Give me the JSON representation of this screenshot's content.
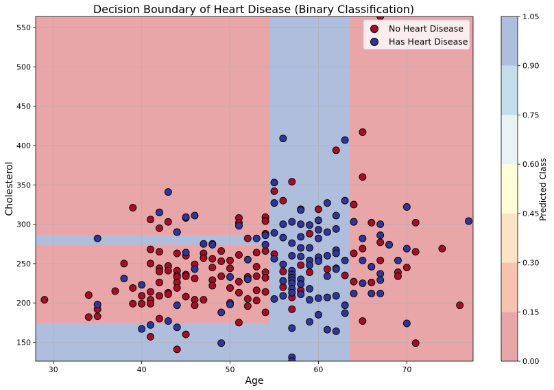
{
  "chart_data": {
    "type": "scatter",
    "title": "Decision Boundary of Heart Disease (Binary Classification)",
    "xlabel": "Age",
    "ylabel": "Cholesterol",
    "xlim": [
      28,
      77.5
    ],
    "ylim": [
      126,
      564
    ],
    "xticks": [
      30,
      40,
      50,
      60,
      70
    ],
    "yticks": [
      150,
      200,
      250,
      300,
      350,
      400,
      450,
      500,
      550
    ],
    "grid": true,
    "legend_position": "top-right",
    "colors": {
      "class0_point": "#a50f26",
      "class1_point": "#313694",
      "class0_region": "#e8a6a9",
      "class1_region": "#afbedd",
      "point_edge": "#000000",
      "grid": "#b0b0b0"
    },
    "regions": [
      {
        "class": 1,
        "x": [
          54.5,
          63.5
        ],
        "y": [
          126,
          564
        ]
      },
      {
        "class": 1,
        "x": [
          28,
          54.5
        ],
        "y": [
          126,
          174
        ]
      },
      {
        "class": 1,
        "x": [
          28,
          54.5
        ],
        "y": [
          274,
          286
        ]
      }
    ],
    "series": [
      {
        "name": "No Heart Disease",
        "class": 0,
        "points": [
          [
            29,
            204
          ],
          [
            34,
            210
          ],
          [
            34,
            182
          ],
          [
            35,
            183
          ],
          [
            35,
            192
          ],
          [
            37,
            215
          ],
          [
            38,
            250
          ],
          [
            39,
            321
          ],
          [
            39,
            219
          ],
          [
            39,
            199
          ],
          [
            40,
            199
          ],
          [
            40,
            209
          ],
          [
            40,
            199
          ],
          [
            41,
            306
          ],
          [
            41,
            268
          ],
          [
            41,
            250
          ],
          [
            41,
            214
          ],
          [
            41,
            204
          ],
          [
            41,
            199
          ],
          [
            41,
            157
          ],
          [
            42,
            315
          ],
          [
            42,
            295
          ],
          [
            42,
            265
          ],
          [
            42,
            244
          ],
          [
            42,
            240
          ],
          [
            42,
            226
          ],
          [
            42,
            209
          ],
          [
            42,
            180
          ],
          [
            43,
            303
          ],
          [
            43,
            247
          ],
          [
            43,
            241
          ],
          [
            43,
            213
          ],
          [
            43,
            211
          ],
          [
            44,
            290
          ],
          [
            44,
            263
          ],
          [
            44,
            241
          ],
          [
            44,
            235
          ],
          [
            44,
            233
          ],
          [
            44,
            226
          ],
          [
            44,
            219
          ],
          [
            44,
            141
          ],
          [
            45,
            308
          ],
          [
            45,
            260
          ],
          [
            45,
            236
          ],
          [
            45,
            234
          ],
          [
            45,
            208
          ],
          [
            45,
            160
          ],
          [
            46,
            249
          ],
          [
            46,
            231
          ],
          [
            46,
            204
          ],
          [
            46,
            197
          ],
          [
            47,
            263
          ],
          [
            47,
            257
          ],
          [
            47,
            204
          ],
          [
            48,
            275
          ],
          [
            48,
            256
          ],
          [
            48,
            245
          ],
          [
            48,
            229
          ],
          [
            48,
            222
          ],
          [
            49,
            266
          ],
          [
            49,
            253
          ],
          [
            49,
            234
          ],
          [
            50,
            254
          ],
          [
            50,
            244
          ],
          [
            50,
            219
          ],
          [
            50,
            200
          ],
          [
            51,
            308
          ],
          [
            51,
            302
          ],
          [
            51,
            261
          ],
          [
            51,
            227
          ],
          [
            51,
            213
          ],
          [
            51,
            175
          ],
          [
            52,
            282
          ],
          [
            52,
            233
          ],
          [
            52,
            205
          ],
          [
            52,
            196
          ],
          [
            53,
            264
          ],
          [
            53,
            246
          ],
          [
            53,
            234
          ],
          [
            53,
            216
          ],
          [
            53,
            203
          ],
          [
            54,
            309
          ],
          [
            54,
            304
          ],
          [
            54,
            288
          ],
          [
            54,
            266
          ],
          [
            54,
            239
          ],
          [
            54,
            232
          ],
          [
            54,
            214
          ],
          [
            54,
            188
          ],
          [
            55,
            342
          ],
          [
            55,
            262
          ],
          [
            56,
            330
          ],
          [
            56,
            240
          ],
          [
            56,
            220
          ],
          [
            57,
            354
          ],
          [
            57,
            236
          ],
          [
            57,
            207
          ],
          [
            57,
            192
          ],
          [
            58,
            319
          ],
          [
            58,
            248
          ],
          [
            58,
            216
          ],
          [
            59,
            288
          ],
          [
            59,
            239
          ],
          [
            60,
            319
          ],
          [
            60,
            254
          ],
          [
            61,
            243
          ],
          [
            61,
            207
          ],
          [
            62,
            394
          ],
          [
            62,
            244
          ],
          [
            63,
            235
          ],
          [
            64,
            325
          ],
          [
            64,
            303
          ],
          [
            64,
            263
          ],
          [
            64,
            227
          ],
          [
            65,
            417
          ],
          [
            65,
            360
          ],
          [
            65,
            269
          ],
          [
            65,
            177
          ],
          [
            66,
            302
          ],
          [
            66,
            226
          ],
          [
            67,
            564
          ],
          [
            67,
            277
          ],
          [
            67,
            254
          ],
          [
            68,
            274
          ],
          [
            69,
            239
          ],
          [
            69,
            234
          ],
          [
            70,
            245
          ],
          [
            71,
            302
          ],
          [
            71,
            265
          ],
          [
            71,
            149
          ],
          [
            74,
            269
          ],
          [
            76,
            197
          ]
        ]
      },
      {
        "name": "Has Heart Disease",
        "class": 1,
        "points": [
          [
            35,
            282
          ],
          [
            35,
            198
          ],
          [
            38,
            231
          ],
          [
            40,
            223
          ],
          [
            40,
            167
          ],
          [
            41,
            172
          ],
          [
            42,
            315
          ],
          [
            43,
            341
          ],
          [
            43,
            177
          ],
          [
            44,
            290
          ],
          [
            44,
            197
          ],
          [
            44,
            169
          ],
          [
            45,
            309
          ],
          [
            45,
            264
          ],
          [
            46,
            311
          ],
          [
            46,
            243
          ],
          [
            47,
            275
          ],
          [
            48,
            274
          ],
          [
            49,
            188
          ],
          [
            49,
            149
          ],
          [
            50,
            233
          ],
          [
            50,
            198
          ],
          [
            51,
            298
          ],
          [
            52,
            255
          ],
          [
            52,
            230
          ],
          [
            53,
            282
          ],
          [
            54,
            286
          ],
          [
            54,
            274
          ],
          [
            55,
            353
          ],
          [
            55,
            327
          ],
          [
            55,
            289
          ],
          [
            55,
            256
          ],
          [
            55,
            205
          ],
          [
            56,
            409
          ],
          [
            56,
            300
          ],
          [
            56,
            283
          ],
          [
            56,
            249
          ],
          [
            56,
            228
          ],
          [
            56,
            209
          ],
          [
            57,
            303
          ],
          [
            57,
            276
          ],
          [
            57,
            260
          ],
          [
            57,
            241
          ],
          [
            57,
            236
          ],
          [
            57,
            232
          ],
          [
            57,
            229
          ],
          [
            57,
            225
          ],
          [
            57,
            218
          ],
          [
            57,
            213
          ],
          [
            57,
            168
          ],
          [
            57,
            131
          ],
          [
            57,
            126
          ],
          [
            58,
            318
          ],
          [
            58,
            300
          ],
          [
            58,
            284
          ],
          [
            58,
            270
          ],
          [
            58,
            259
          ],
          [
            58,
            230
          ],
          [
            58,
            224
          ],
          [
            58,
            211
          ],
          [
            59,
            299
          ],
          [
            59,
            270
          ],
          [
            59,
            254
          ],
          [
            59,
            248
          ],
          [
            59,
            218
          ],
          [
            59,
            204
          ],
          [
            59,
            176
          ],
          [
            60,
            305
          ],
          [
            60,
            293
          ],
          [
            60,
            282
          ],
          [
            60,
            258
          ],
          [
            60,
            253
          ],
          [
            60,
            206
          ],
          [
            60,
            185
          ],
          [
            61,
            327
          ],
          [
            61,
            290
          ],
          [
            61,
            260
          ],
          [
            61,
            234
          ],
          [
            61,
            207
          ],
          [
            61,
            166
          ],
          [
            62,
            311
          ],
          [
            62,
            294
          ],
          [
            62,
            267
          ],
          [
            62,
            263
          ],
          [
            62,
            243
          ],
          [
            62,
            209
          ],
          [
            62,
            164
          ],
          [
            63,
            407
          ],
          [
            63,
            330
          ],
          [
            63,
            254
          ],
          [
            63,
            197
          ],
          [
            63,
            187
          ],
          [
            64,
            303
          ],
          [
            64,
            212
          ],
          [
            65,
            282
          ],
          [
            65,
            254
          ],
          [
            65,
            225
          ],
          [
            66,
            246
          ],
          [
            66,
            212
          ],
          [
            67,
            300
          ],
          [
            67,
            286
          ],
          [
            67,
            237
          ],
          [
            67,
            229
          ],
          [
            67,
            212
          ],
          [
            68,
            274
          ],
          [
            69,
            254
          ],
          [
            70,
            322
          ],
          [
            70,
            269
          ],
          [
            70,
            174
          ],
          [
            77,
            304
          ]
        ]
      }
    ],
    "colorbar": {
      "label": "Predicted Class",
      "ticks": [
        "0.00",
        "0.15",
        "0.30",
        "0.45",
        "0.60",
        "0.75",
        "0.90",
        "1.05"
      ],
      "colors": [
        "#e8a6a9",
        "#f7c2ae",
        "#fde3c5",
        "#fefed9",
        "#e8f3f6",
        "#c3dee9",
        "#afbedd"
      ]
    }
  }
}
